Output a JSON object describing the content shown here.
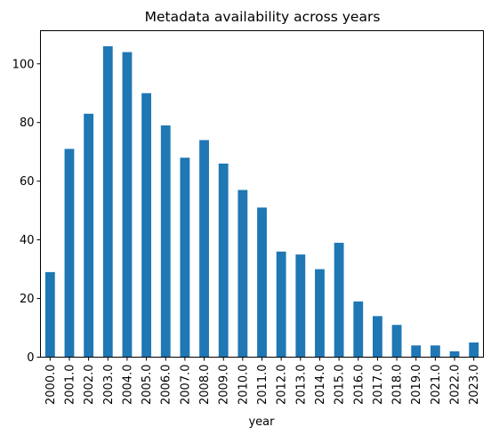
{
  "chart_data": {
    "type": "bar",
    "title": "Metadata availability across years",
    "xlabel": "year",
    "ylabel": "",
    "ylim": [
      0,
      111.3
    ],
    "yticks": [
      0,
      20,
      40,
      60,
      80,
      100
    ],
    "grid": false,
    "legend": "none",
    "bar_color": "#1f77b4",
    "categories": [
      "2000.0",
      "2001.0",
      "2002.0",
      "2003.0",
      "2004.0",
      "2005.0",
      "2006.0",
      "2007.0",
      "2008.0",
      "2009.0",
      "2010.0",
      "2011.0",
      "2012.0",
      "2013.0",
      "2014.0",
      "2015.0",
      "2016.0",
      "2017.0",
      "2018.0",
      "2019.0",
      "2021.0",
      "2022.0",
      "2023.0"
    ],
    "values": [
      29,
      71,
      83,
      106,
      104,
      90,
      79,
      68,
      74,
      66,
      57,
      51,
      36,
      35,
      30,
      39,
      19,
      14,
      11,
      4,
      4,
      2,
      5
    ]
  }
}
